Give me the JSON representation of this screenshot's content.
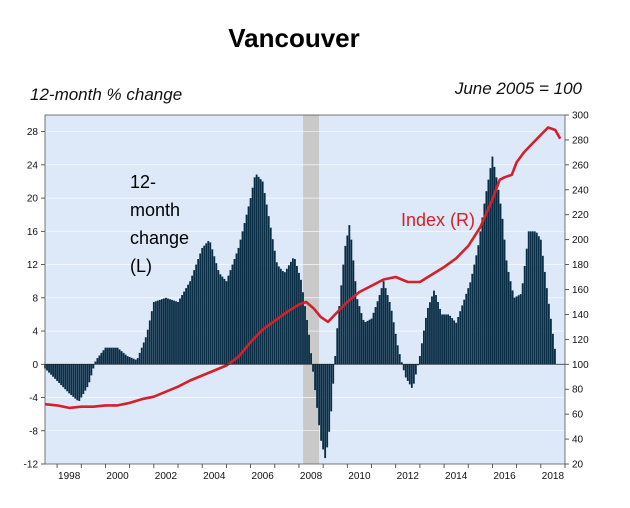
{
  "title": "Vancouver",
  "left_unit": "12-month % change",
  "right_unit": "June 2005 = 100",
  "annotations": {
    "bars_lines": [
      "12-",
      "month",
      "change",
      "(L)"
    ],
    "index_label": "Index (R)"
  },
  "colors": {
    "plot_bg": "#dde9f8",
    "bars": "#0b2e47",
    "index_line": "#d4202a",
    "recession": "#c9c9c9"
  },
  "chart_data": {
    "type": "bar",
    "left_axis": {
      "range": [
        -12,
        30
      ],
      "ticks": [
        -12,
        -8,
        -4,
        0,
        4,
        8,
        12,
        16,
        20,
        24,
        28
      ]
    },
    "right_axis": {
      "range": [
        20,
        300
      ],
      "ticks": [
        20,
        40,
        60,
        80,
        100,
        120,
        140,
        160,
        180,
        200,
        220,
        240,
        260,
        280,
        300
      ]
    },
    "x_range": [
      1997.5,
      2019.0
    ],
    "x_ticks": [
      "1998",
      "2000",
      "2002",
      "2004",
      "2006",
      "2008",
      "2010",
      "2012",
      "2014",
      "2016",
      "2018"
    ],
    "recession": [
      2008.17,
      2008.83
    ],
    "series": [
      {
        "name": "12-month change (L)",
        "axis": "left",
        "type": "bar",
        "x": [
          1997.5,
          1998.0,
          1998.5,
          1998.9,
          1999.3,
          1999.6,
          2000.0,
          2000.5,
          2000.9,
          2001.3,
          2001.7,
          2002.0,
          2002.5,
          2003.0,
          2003.5,
          2004.0,
          2004.3,
          2004.7,
          2005.0,
          2005.5,
          2006.0,
          2006.2,
          2006.5,
          2006.8,
          2007.1,
          2007.4,
          2007.8,
          2008.1,
          2008.4,
          2008.7,
          2008.9,
          2009.1,
          2009.3,
          2009.6,
          2009.9,
          2010.1,
          2010.4,
          2010.7,
          2011.0,
          2011.3,
          2011.5,
          2011.8,
          2012.1,
          2012.4,
          2012.7,
          2013.0,
          2013.3,
          2013.6,
          2013.9,
          2014.2,
          2014.5,
          2014.8,
          2015.1,
          2015.4,
          2015.7,
          2016.0,
          2016.2,
          2016.4,
          2016.6,
          2016.9,
          2017.2,
          2017.5,
          2017.8,
          2018.0,
          2018.3,
          2018.6
        ],
        "values": [
          -0.5,
          -2.0,
          -3.5,
          -4.5,
          -2.5,
          0.5,
          2.0,
          2.0,
          1.0,
          0.5,
          3.5,
          7.5,
          8.0,
          7.5,
          10.0,
          14.0,
          15.0,
          11.0,
          10.0,
          14.0,
          20.0,
          23.0,
          22.0,
          17.0,
          12.0,
          11.0,
          13.0,
          10.0,
          4.0,
          -4.0,
          -9.0,
          -11.5,
          -7.0,
          5.0,
          14.0,
          17.0,
          8.0,
          5.0,
          5.5,
          8.0,
          10.0,
          7.0,
          2.0,
          -1.5,
          -3.0,
          1.0,
          6.5,
          9.0,
          6.0,
          6.0,
          5.0,
          7.5,
          10.0,
          14.0,
          20.0,
          25.0,
          22.0,
          18.0,
          12.0,
          8.0,
          8.5,
          16.0,
          16.0,
          15.0,
          8.0,
          1.5
        ]
      },
      {
        "name": "Index (R)",
        "axis": "right",
        "type": "line",
        "x": [
          1997.5,
          1998.0,
          1998.5,
          1999.0,
          1999.5,
          2000.0,
          2000.5,
          2001.0,
          2001.5,
          2002.0,
          2002.5,
          2003.0,
          2003.5,
          2004.0,
          2004.5,
          2005.0,
          2005.5,
          2006.0,
          2006.5,
          2007.0,
          2007.5,
          2008.0,
          2008.3,
          2008.6,
          2008.9,
          2009.2,
          2009.5,
          2010.0,
          2010.5,
          2011.0,
          2011.5,
          2012.0,
          2012.5,
          2013.0,
          2013.5,
          2014.0,
          2014.5,
          2015.0,
          2015.5,
          2016.0,
          2016.3,
          2016.5,
          2016.8,
          2017.0,
          2017.3,
          2017.6,
          2018.0,
          2018.3,
          2018.6,
          2018.8
        ],
        "values": [
          68,
          67,
          65,
          66,
          66,
          67,
          67,
          69,
          72,
          74,
          78,
          82,
          87,
          91,
          95,
          99,
          106,
          118,
          128,
          135,
          142,
          148,
          150,
          145,
          138,
          134,
          140,
          150,
          158,
          163,
          168,
          170,
          166,
          166,
          172,
          178,
          185,
          195,
          210,
          232,
          248,
          250,
          252,
          262,
          270,
          276,
          284,
          290,
          288,
          281
        ]
      }
    ]
  }
}
